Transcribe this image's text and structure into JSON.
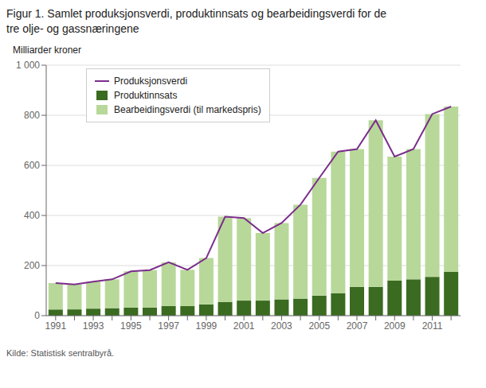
{
  "chart_data": {
    "type": "bar",
    "stacked": true,
    "grid": true,
    "legend": "upper left",
    "title": "Figur 1.  Samlet produksjonsverdi, produktinnsats og bearbeidingsverdi for de",
    "subtitle": "tre olje- og gassnæringene",
    "y_label": "Milliarder kroner",
    "annotations": [
      "Kilde: Statistisk sentralbyrå."
    ],
    "categories": [
      "1991",
      null,
      "1993",
      null,
      "1995",
      null,
      "1997",
      null,
      "1999",
      null,
      "2001",
      null,
      "2003",
      null,
      "2005",
      null,
      "2007",
      null,
      "2009",
      null,
      "2011",
      null
    ],
    "series": [
      {
        "name": "Produktinnsats",
        "type": "bar",
        "color": "#3a6b20",
        "values": [
          25,
          25,
          28,
          30,
          32,
          32,
          38,
          38,
          45,
          55,
          60,
          60,
          65,
          68,
          80,
          90,
          115,
          115,
          140,
          145,
          155,
          175
        ]
      },
      {
        "name": "Bearbeidingsverdi (til markedspris)",
        "type": "bar",
        "color": "#b8d89a",
        "values": [
          105,
          100,
          108,
          115,
          145,
          150,
          175,
          145,
          185,
          340,
          330,
          270,
          305,
          375,
          470,
          565,
          550,
          665,
          495,
          520,
          650,
          660
        ]
      },
      {
        "name": "Produksjonsverdi",
        "type": "line",
        "color": "#7b2d8b",
        "values": [
          130,
          125,
          136,
          145,
          177,
          182,
          213,
          183,
          230,
          395,
          390,
          330,
          370,
          443,
          550,
          655,
          665,
          780,
          635,
          665,
          805,
          835
        ]
      }
    ],
    "ylim": [
      0,
      1000
    ],
    "yticks": [
      0,
      200,
      400,
      600,
      800,
      {
        "value": 1000,
        "label": "1 000"
      }
    ]
  }
}
